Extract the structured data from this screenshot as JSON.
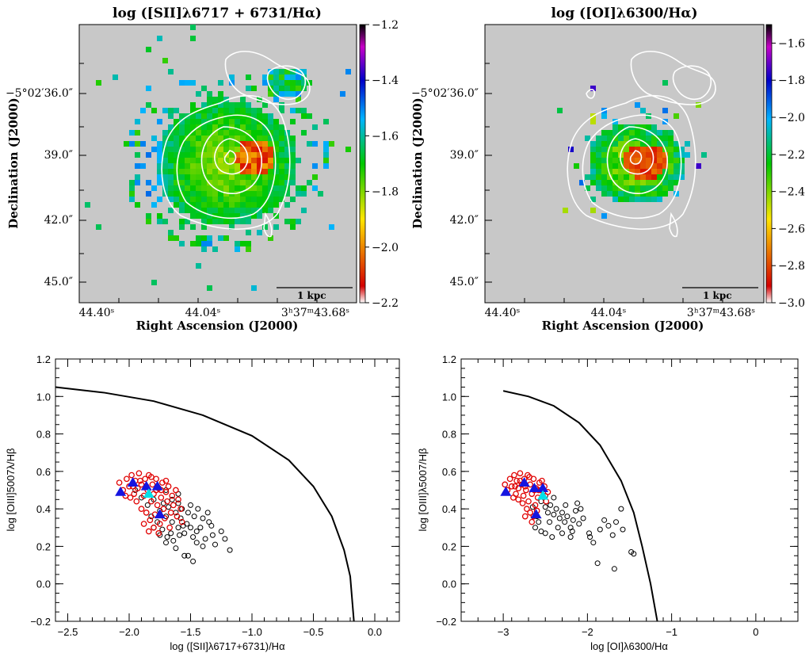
{
  "chart_data": [
    {
      "type": "heatmap",
      "title": "log ([SII]λ6717 + 6731/Hα)",
      "xlabel": "Right Ascension (J2000)",
      "ylabel": "Declination (J2000)",
      "x_ticks": [
        "44.40ˢ",
        "44.04ˢ",
        "3ʰ37ᵐ43.68ˢ"
      ],
      "y_ticks": [
        "−5°02′36.0″",
        "39.0″",
        "42.0″",
        "45.0″"
      ],
      "colorbar_ticks": [
        "−1.2",
        "−1.4",
        "−1.6",
        "−1.8",
        "−2.0",
        "−2.2"
      ],
      "colorbar_range": [
        -2.2,
        -1.2
      ],
      "scalebar_label": "1 kpc",
      "colormap": [
        "#ffffff",
        "#d40000",
        "#ffe600",
        "#00c800",
        "#00b4ff",
        "#0000c8",
        "#c800c8",
        "#000000"
      ],
      "background": "#c8c8c8"
    },
    {
      "type": "heatmap",
      "title": "log ([OI]λ6300/Hα)",
      "xlabel": "Right Ascension (J2000)",
      "ylabel": "Declination (J2000)",
      "x_ticks": [
        "44.40ˢ",
        "44.04ˢ",
        "3ʰ37ᵐ43.68ˢ"
      ],
      "y_ticks": [
        "−5°02′36.0″",
        "39.0″",
        "42.0″",
        "45.0″"
      ],
      "colorbar_ticks": [
        "−1.6",
        "−1.8",
        "−2.0",
        "−2.2",
        "−2.4",
        "−2.6",
        "−2.8",
        "−3.0"
      ],
      "colorbar_range": [
        -3.0,
        -1.5
      ],
      "scalebar_label": "1 kpc",
      "colormap": [
        "#ffffff",
        "#d40000",
        "#ffe600",
        "#00c800",
        "#00b4ff",
        "#0000c8",
        "#c800c8",
        "#000000"
      ],
      "background": "#c8c8c8"
    },
    {
      "type": "scatter",
      "xlabel": "log ([SII]λ6717+6731)/Hα",
      "ylabel": "log [OIII]5007λ/Hβ",
      "xlim": [
        -2.6,
        0.2
      ],
      "ylim": [
        -0.2,
        1.2
      ],
      "x_ticks": [
        "−2.5",
        "−2.0",
        "−1.5",
        "−1.0",
        "−0.5",
        "0.0"
      ],
      "y_ticks": [
        "−0.2",
        "0.0",
        "0.2",
        "0.4",
        "0.6",
        "0.8",
        "1.0",
        "1.2"
      ],
      "demarcation": [
        [
          -2.6,
          1.05
        ],
        [
          -2.2,
          1.02
        ],
        [
          -1.8,
          0.975
        ],
        [
          -1.4,
          0.9
        ],
        [
          -1.0,
          0.79
        ],
        [
          -0.7,
          0.66
        ],
        [
          -0.5,
          0.52
        ],
        [
          -0.35,
          0.36
        ],
        [
          -0.25,
          0.18
        ],
        [
          -0.2,
          0.04
        ],
        [
          -0.17,
          -0.2
        ]
      ],
      "black_points": [
        [
          -1.95,
          0.5
        ],
        [
          -1.9,
          0.46
        ],
        [
          -1.85,
          0.42
        ],
        [
          -1.8,
          0.45
        ],
        [
          -1.75,
          0.39
        ],
        [
          -1.72,
          0.43
        ],
        [
          -1.7,
          0.36
        ],
        [
          -1.68,
          0.41
        ],
        [
          -1.65,
          0.33
        ],
        [
          -1.62,
          0.38
        ],
        [
          -1.6,
          0.3
        ],
        [
          -1.58,
          0.35
        ],
        [
          -1.55,
          0.27
        ],
        [
          -1.53,
          0.32
        ],
        [
          -1.5,
          0.3
        ],
        [
          -1.48,
          0.25
        ],
        [
          -1.45,
          0.28
        ],
        [
          -1.45,
          0.22
        ],
        [
          -1.42,
          0.3
        ],
        [
          -1.4,
          0.2
        ],
        [
          -1.38,
          0.24
        ],
        [
          -1.35,
          0.33
        ],
        [
          -1.32,
          0.26
        ],
        [
          -1.3,
          0.21
        ],
        [
          -1.25,
          0.28
        ],
        [
          -1.22,
          0.24
        ],
        [
          -1.18,
          0.18
        ],
        [
          -1.8,
          0.3
        ],
        [
          -1.75,
          0.26
        ],
        [
          -1.7,
          0.22
        ],
        [
          -1.66,
          0.27
        ],
        [
          -1.62,
          0.19
        ],
        [
          -1.55,
          0.15
        ],
        [
          -1.52,
          0.15
        ],
        [
          -1.48,
          0.12
        ],
        [
          -1.6,
          0.43
        ],
        [
          -1.57,
          0.4
        ],
        [
          -1.52,
          0.38
        ],
        [
          -1.5,
          0.42
        ],
        [
          -1.47,
          0.36
        ],
        [
          -1.44,
          0.4
        ],
        [
          -1.4,
          0.35
        ],
        [
          -1.36,
          0.38
        ],
        [
          -1.33,
          0.31
        ],
        [
          -1.82,
          0.36
        ],
        [
          -1.77,
          0.33
        ],
        [
          -1.73,
          0.29
        ],
        [
          -1.69,
          0.25
        ],
        [
          -1.64,
          0.23
        ],
        [
          -1.59,
          0.26
        ],
        [
          -1.56,
          0.31
        ],
        [
          -1.65,
          0.45
        ],
        [
          -1.6,
          0.48
        ],
        [
          -1.7,
          0.5
        ]
      ],
      "red_points": [
        [
          -2.08,
          0.54
        ],
        [
          -2.05,
          0.5
        ],
        [
          -2.02,
          0.56
        ],
        [
          -2.0,
          0.52
        ],
        [
          -1.98,
          0.58
        ],
        [
          -1.96,
          0.48
        ],
        [
          -1.95,
          0.55
        ],
        [
          -1.93,
          0.51
        ],
        [
          -1.92,
          0.59
        ],
        [
          -1.9,
          0.53
        ],
        [
          -1.88,
          0.47
        ],
        [
          -1.87,
          0.56
        ],
        [
          -1.85,
          0.5
        ],
        [
          -1.84,
          0.58
        ],
        [
          -1.82,
          0.44
        ],
        [
          -1.81,
          0.53
        ],
        [
          -1.8,
          0.48
        ],
        [
          -1.78,
          0.56
        ],
        [
          -1.77,
          0.42
        ],
        [
          -1.76,
          0.51
        ],
        [
          -1.74,
          0.46
        ],
        [
          -1.73,
          0.54
        ],
        [
          -1.72,
          0.4
        ],
        [
          -1.7,
          0.49
        ],
        [
          -1.69,
          0.44
        ],
        [
          -1.68,
          0.52
        ],
        [
          -1.66,
          0.38
        ],
        [
          -1.65,
          0.47
        ],
        [
          -1.64,
          0.42
        ],
        [
          -1.62,
          0.5
        ],
        [
          -1.61,
          0.36
        ],
        [
          -1.6,
          0.45
        ],
        [
          -1.58,
          0.4
        ],
        [
          -1.57,
          0.33
        ],
        [
          -1.9,
          0.4
        ],
        [
          -1.86,
          0.38
        ],
        [
          -1.83,
          0.34
        ],
        [
          -1.79,
          0.37
        ],
        [
          -1.75,
          0.32
        ],
        [
          -1.71,
          0.35
        ],
        [
          -1.94,
          0.44
        ],
        [
          -1.99,
          0.46
        ],
        [
          -2.03,
          0.47
        ],
        [
          -1.88,
          0.32
        ],
        [
          -1.84,
          0.28
        ],
        [
          -1.8,
          0.3
        ],
        [
          -1.76,
          0.27
        ],
        [
          -1.67,
          0.3
        ],
        [
          -1.97,
          0.52
        ],
        [
          -1.91,
          0.55
        ],
        [
          -1.86,
          0.52
        ],
        [
          -1.82,
          0.57
        ],
        [
          -1.78,
          0.5
        ],
        [
          -1.74,
          0.5
        ],
        [
          -1.7,
          0.55
        ]
      ],
      "blue_triangles": [
        [
          -2.07,
          0.49
        ],
        [
          -1.97,
          0.54
        ],
        [
          -1.86,
          0.52
        ],
        [
          -1.77,
          0.52
        ],
        [
          -1.75,
          0.37
        ]
      ],
      "cyan_triangles": [
        [
          -1.84,
          0.48
        ]
      ]
    },
    {
      "type": "scatter",
      "xlabel": "log [OI]λ6300/Hα",
      "ylabel": "log [OIII]λ5007/Hβ",
      "xlim": [
        -3.5,
        0.5
      ],
      "ylim": [
        -0.2,
        1.2
      ],
      "x_ticks": [
        "−3",
        "−2",
        "−1",
        "0"
      ],
      "y_ticks": [
        "−0.2",
        "0.0",
        "0.2",
        "0.4",
        "0.6",
        "0.8",
        "1.0",
        "1.2"
      ],
      "demarcation": [
        [
          -3.0,
          1.03
        ],
        [
          -2.7,
          1.0
        ],
        [
          -2.4,
          0.95
        ],
        [
          -2.1,
          0.86
        ],
        [
          -1.85,
          0.74
        ],
        [
          -1.6,
          0.55
        ],
        [
          -1.45,
          0.38
        ],
        [
          -1.35,
          0.2
        ],
        [
          -1.25,
          0.0
        ],
        [
          -1.17,
          -0.2
        ]
      ],
      "black_points": [
        [
          -2.55,
          0.44
        ],
        [
          -2.5,
          0.41
        ],
        [
          -2.47,
          0.38
        ],
        [
          -2.44,
          0.42
        ],
        [
          -2.4,
          0.37
        ],
        [
          -2.37,
          0.4
        ],
        [
          -2.33,
          0.35
        ],
        [
          -2.3,
          0.38
        ],
        [
          -2.27,
          0.33
        ],
        [
          -2.24,
          0.36
        ],
        [
          -2.2,
          0.3
        ],
        [
          -2.17,
          0.34
        ],
        [
          -2.14,
          0.39
        ],
        [
          -2.1,
          0.32
        ],
        [
          -2.05,
          0.35
        ],
        [
          -2.35,
          0.3
        ],
        [
          -2.45,
          0.33
        ],
        [
          -2.58,
          0.33
        ],
        [
          -2.62,
          0.3
        ],
        [
          -2.55,
          0.28
        ],
        [
          -2.5,
          0.27
        ],
        [
          -2.42,
          0.25
        ],
        [
          -2.2,
          0.25
        ],
        [
          -2.18,
          0.28
        ],
        [
          -1.98,
          0.27
        ],
        [
          -1.97,
          0.25
        ],
        [
          -1.93,
          0.22
        ],
        [
          -1.85,
          0.29
        ],
        [
          -1.8,
          0.34
        ],
        [
          -1.75,
          0.31
        ],
        [
          -1.7,
          0.26
        ],
        [
          -1.66,
          0.33
        ],
        [
          -1.6,
          0.4
        ],
        [
          -1.58,
          0.29
        ],
        [
          -1.48,
          0.17
        ],
        [
          -1.45,
          0.16
        ],
        [
          -1.88,
          0.11
        ],
        [
          -1.68,
          0.08
        ],
        [
          -2.3,
          0.27
        ],
        [
          -2.26,
          0.42
        ],
        [
          -2.4,
          0.46
        ],
        [
          -2.5,
          0.47
        ],
        [
          -2.6,
          0.36
        ],
        [
          -2.65,
          0.41
        ],
        [
          -2.12,
          0.43
        ],
        [
          -2.08,
          0.4
        ]
      ],
      "red_points": [
        [
          -2.98,
          0.53
        ],
        [
          -2.95,
          0.5
        ],
        [
          -2.92,
          0.56
        ],
        [
          -2.9,
          0.52
        ],
        [
          -2.87,
          0.58
        ],
        [
          -2.85,
          0.48
        ],
        [
          -2.84,
          0.55
        ],
        [
          -2.82,
          0.51
        ],
        [
          -2.8,
          0.59
        ],
        [
          -2.78,
          0.53
        ],
        [
          -2.76,
          0.47
        ],
        [
          -2.75,
          0.56
        ],
        [
          -2.73,
          0.5
        ],
        [
          -2.71,
          0.58
        ],
        [
          -2.7,
          0.44
        ],
        [
          -2.68,
          0.53
        ],
        [
          -2.66,
          0.48
        ],
        [
          -2.64,
          0.56
        ],
        [
          -2.62,
          0.42
        ],
        [
          -2.61,
          0.51
        ],
        [
          -2.59,
          0.46
        ],
        [
          -2.57,
          0.54
        ],
        [
          -2.55,
          0.5
        ],
        [
          -2.53,
          0.47
        ],
        [
          -2.51,
          0.52
        ],
        [
          -2.49,
          0.44
        ],
        [
          -2.47,
          0.49
        ],
        [
          -2.72,
          0.4
        ],
        [
          -2.68,
          0.38
        ],
        [
          -2.64,
          0.36
        ],
        [
          -2.6,
          0.39
        ],
        [
          -2.77,
          0.43
        ],
        [
          -2.82,
          0.45
        ],
        [
          -2.88,
          0.46
        ],
        [
          -2.74,
          0.36
        ],
        [
          -2.66,
          0.33
        ],
        [
          -2.86,
          0.52
        ],
        [
          -2.8,
          0.55
        ],
        [
          -2.74,
          0.52
        ],
        [
          -2.69,
          0.57
        ],
        [
          -2.63,
          0.5
        ],
        [
          -2.58,
          0.5
        ],
        [
          -2.54,
          0.55
        ]
      ],
      "blue_triangles": [
        [
          -2.97,
          0.49
        ],
        [
          -2.75,
          0.54
        ],
        [
          -2.63,
          0.51
        ],
        [
          -2.53,
          0.51
        ],
        [
          -2.61,
          0.37
        ]
      ],
      "cyan_triangles": [
        [
          -2.53,
          0.47
        ]
      ]
    }
  ]
}
